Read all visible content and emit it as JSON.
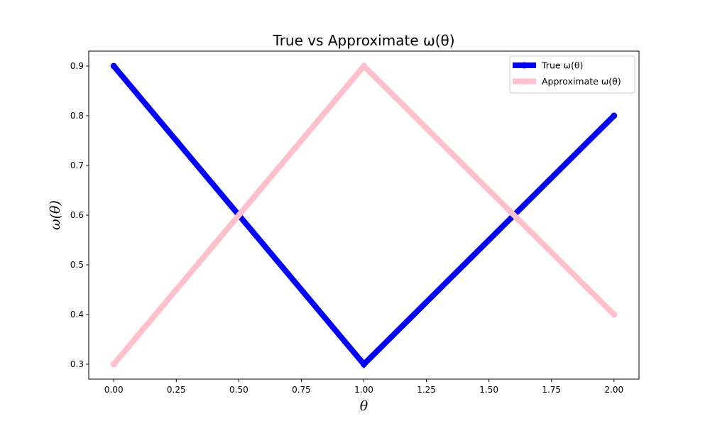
{
  "chart_data": {
    "type": "line",
    "title": "True vs Approximate ω(θ)",
    "xlabel": "θ",
    "ylabel": "ω(θ)",
    "x": [
      0.0,
      1.0,
      2.0
    ],
    "xlim": [
      -0.1,
      2.1
    ],
    "ylim": [
      0.27,
      0.93
    ],
    "xticks": [
      0.0,
      0.25,
      0.5,
      0.75,
      1.0,
      1.25,
      1.5,
      1.75,
      2.0
    ],
    "xtick_labels": [
      "0.00",
      "0.25",
      "0.50",
      "0.75",
      "1.00",
      "1.25",
      "1.50",
      "1.75",
      "2.00"
    ],
    "yticks": [
      0.3,
      0.4,
      0.5,
      0.6,
      0.7,
      0.8,
      0.9
    ],
    "ytick_labels": [
      "0.3",
      "0.4",
      "0.5",
      "0.6",
      "0.7",
      "0.8",
      "0.9"
    ],
    "grid": false,
    "legend_position": "top-right",
    "series": [
      {
        "name": "True ω(θ)",
        "values": [
          0.9,
          0.3,
          0.8
        ],
        "color": "#0000ff",
        "marker": "circle"
      },
      {
        "name": "Approximate ω(θ)",
        "values": [
          0.3,
          0.9,
          0.4
        ],
        "color": "#ffc0cb",
        "marker": "circle"
      }
    ]
  }
}
